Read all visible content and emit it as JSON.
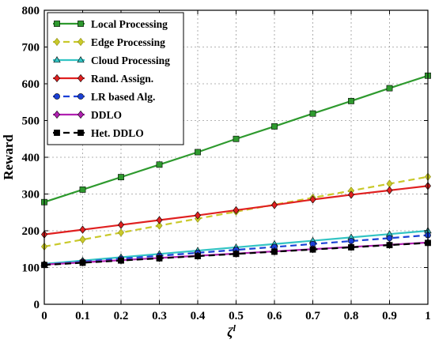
{
  "chart_data": {
    "type": "line",
    "xlabel_base": "ζ",
    "xlabel_sup": "l",
    "ylabel": "Reward",
    "xlim": [
      0,
      1
    ],
    "ylim": [
      0,
      800
    ],
    "x": [
      0,
      0.1,
      0.2,
      0.3,
      0.4,
      0.5,
      0.6,
      0.7,
      0.8,
      0.9,
      1
    ],
    "xticks": [
      "0",
      "0.1",
      "0.2",
      "0.3",
      "0.4",
      "0.5",
      "0.6",
      "0.7",
      "0.8",
      "0.9",
      "1"
    ],
    "yticks": [
      "0",
      "100",
      "200",
      "300",
      "400",
      "500",
      "600",
      "700",
      "800"
    ],
    "grid": true,
    "legend_position": "top-left",
    "series": [
      {
        "name": "Local Processing",
        "color": "#2e9a2e",
        "marker": "square",
        "dashed": false,
        "values": [
          278,
          312,
          346,
          380,
          414,
          450,
          484,
          519,
          553,
          588,
          622
        ]
      },
      {
        "name": "Edge Processing",
        "color": "#c9c92a",
        "marker": "diamond",
        "dashed": true,
        "values": [
          157,
          176,
          195,
          214,
          233,
          252,
          271,
          290,
          309,
          328,
          347
        ]
      },
      {
        "name": "Cloud Processing",
        "color": "#33c4c4",
        "marker": "triangle",
        "dashed": false,
        "values": [
          110,
          119,
          128,
          137,
          146,
          155,
          164,
          173,
          182,
          191,
          200
        ]
      },
      {
        "name": "Rand. Assign.",
        "color": "#e02020",
        "marker": "diamond",
        "dashed": false,
        "values": [
          190,
          203,
          216,
          229,
          242,
          256,
          270,
          285,
          298,
          310,
          322
        ]
      },
      {
        "name": "LR based Alg.",
        "color": "#1a3fd6",
        "marker": "circle",
        "dashed": true,
        "values": [
          108,
          116,
          124,
          132,
          140,
          148,
          156,
          164,
          172,
          180,
          188
        ]
      },
      {
        "name": "DDLO",
        "color": "#b020b0",
        "marker": "diamond",
        "dashed": false,
        "values": [
          108,
          114,
          120,
          126,
          132,
          138,
          144,
          150,
          156,
          162,
          168
        ]
      },
      {
        "name": "Het. DDLO",
        "color": "#000000",
        "marker": "square",
        "dashed": true,
        "values": [
          107,
          113,
          119,
          125,
          131,
          137,
          143,
          149,
          155,
          161,
          167
        ]
      }
    ]
  }
}
